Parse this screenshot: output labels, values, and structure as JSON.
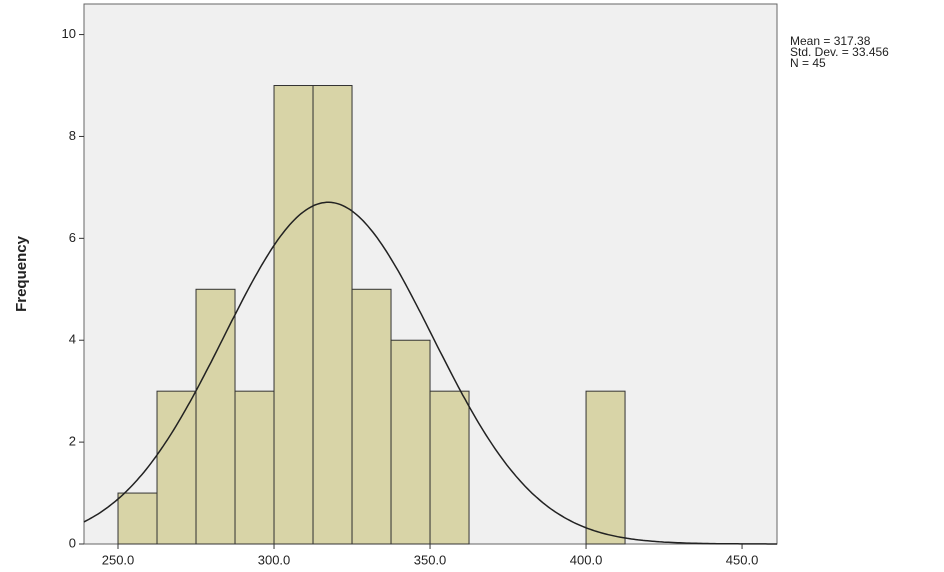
{
  "chart_data": {
    "type": "histogram",
    "bins": [
      250,
      262.5,
      275,
      287.5,
      300,
      312.5,
      325,
      337.5,
      350,
      362.5,
      375,
      387.5,
      400,
      412.5
    ],
    "values": [
      1,
      3,
      5,
      3,
      9,
      9,
      5,
      4,
      3,
      0,
      0,
      0,
      3
    ],
    "color": "#d4cf9a",
    "y_label": "Frequency",
    "xlim": [
      239.1,
      461.2
    ],
    "ylim": [
      0,
      10.6
    ],
    "xticks": [
      {
        "value": 250,
        "label": "250.0"
      },
      {
        "value": 300,
        "label": "300.0"
      },
      {
        "value": 350,
        "label": "350.0"
      },
      {
        "value": 400,
        "label": "400.0"
      },
      {
        "value": 450,
        "label": "450.0"
      }
    ],
    "yticks": [
      0,
      2,
      4,
      6,
      8,
      10
    ],
    "stats": [
      {
        "value": 317.38,
        "label": "Mean = 317.38"
      },
      {
        "value": 33.456,
        "label": "Std. Dev. = 33.456"
      },
      {
        "value": 45,
        "label": "N = 45"
      }
    ],
    "normal_curve": true
  }
}
